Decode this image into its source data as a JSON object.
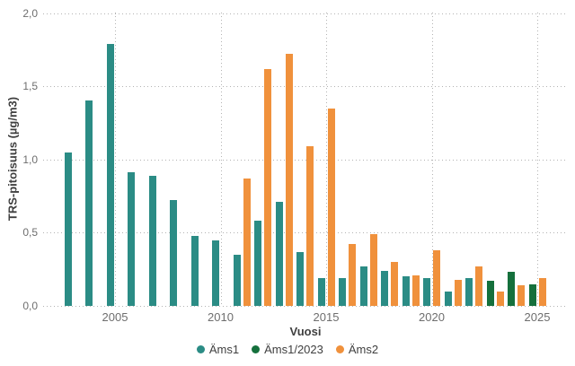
{
  "chart_data": {
    "type": "bar",
    "title": "",
    "xlabel": "Vuosi",
    "ylabel": "TRS-pitoisuus (µg/m3)",
    "ylim": [
      0,
      2
    ],
    "grid": true,
    "legend_position": "bottom",
    "yticks": [
      {
        "value": 0,
        "label": "0,0"
      },
      {
        "value": 0.5,
        "label": "0,5"
      },
      {
        "value": 1,
        "label": "1,0"
      },
      {
        "value": 1.5,
        "label": "1,5"
      },
      {
        "value": 2,
        "label": "2,0"
      }
    ],
    "xticks": [
      {
        "value": 2005,
        "label": "2005"
      },
      {
        "value": 2010,
        "label": "2010"
      },
      {
        "value": 2015,
        "label": "2015"
      },
      {
        "value": 2020,
        "label": "2020"
      },
      {
        "value": 2025,
        "label": "2025"
      }
    ],
    "series": [
      {
        "name": "Äms1",
        "color": "#2B8C85",
        "slot": "left",
        "data": [
          [
            2003,
            1.05
          ],
          [
            2004,
            1.4
          ],
          [
            2005,
            1.79
          ],
          [
            2006,
            0.91
          ],
          [
            2007,
            0.89
          ],
          [
            2008,
            0.72
          ],
          [
            2009,
            0.48
          ],
          [
            2010,
            0.45
          ],
          [
            2011,
            0.35
          ],
          [
            2012,
            0.58
          ],
          [
            2013,
            0.71
          ],
          [
            2014,
            0.37
          ],
          [
            2015,
            0.19
          ],
          [
            2016,
            0.19
          ],
          [
            2017,
            0.27
          ],
          [
            2018,
            0.24
          ],
          [
            2019,
            0.2
          ],
          [
            2020,
            0.19
          ],
          [
            2021,
            0.1
          ],
          [
            2022,
            0.19
          ]
        ]
      },
      {
        "name": "Äms1/2023",
        "color": "#15703C",
        "slot": "left",
        "data": [
          [
            2023,
            0.17
          ],
          [
            2024,
            0.23
          ],
          [
            2025,
            0.15
          ]
        ]
      },
      {
        "name": "Äms2",
        "color": "#F0913C",
        "slot": "right",
        "data": [
          [
            2011,
            0.87
          ],
          [
            2012,
            1.62
          ],
          [
            2013,
            1.72
          ],
          [
            2014,
            1.09
          ],
          [
            2015,
            1.35
          ],
          [
            2016,
            0.42
          ],
          [
            2017,
            0.49
          ],
          [
            2018,
            0.3
          ],
          [
            2019,
            0.21
          ],
          [
            2020,
            0.38
          ],
          [
            2021,
            0.18
          ],
          [
            2022,
            0.27
          ],
          [
            2023,
            0.1
          ],
          [
            2024,
            0.14
          ],
          [
            2025,
            0.19
          ]
        ]
      }
    ],
    "colors": {
      "grid": "#B3B3B3",
      "tick_label": "#6E6E6E",
      "axis_title": "#3F3F3F",
      "legend_text": "#3F3F3F",
      "background": "#FFFFFF"
    }
  }
}
